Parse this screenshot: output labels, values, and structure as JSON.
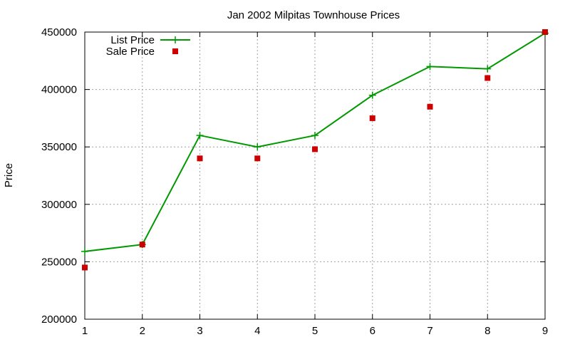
{
  "chart_data": {
    "type": "line",
    "title": "Jan 2002 Milpitas Townhouse Prices",
    "xlabel": "",
    "ylabel": "Price",
    "x": [
      1,
      2,
      3,
      4,
      5,
      6,
      7,
      8,
      9
    ],
    "xlim": [
      1,
      9
    ],
    "ylim": [
      200000,
      450000
    ],
    "x_ticks": [
      "1",
      "2",
      "3",
      "4",
      "5",
      "6",
      "7",
      "8",
      "9"
    ],
    "y_ticks": [
      "200000",
      "250000",
      "300000",
      "350000",
      "400000",
      "450000"
    ],
    "grid": true,
    "legend_position": "top-left",
    "series": [
      {
        "name": "List Price",
        "style": "line-points",
        "marker": "plus",
        "color": "#009900",
        "values": [
          259000,
          265000,
          360000,
          350000,
          360000,
          395000,
          420000,
          418000,
          449000
        ]
      },
      {
        "name": "Sale Price",
        "style": "points",
        "marker": "square",
        "color": "#cc0000",
        "values": [
          245000,
          265000,
          340000,
          340000,
          348000,
          375000,
          385000,
          410000,
          450000
        ]
      }
    ]
  }
}
